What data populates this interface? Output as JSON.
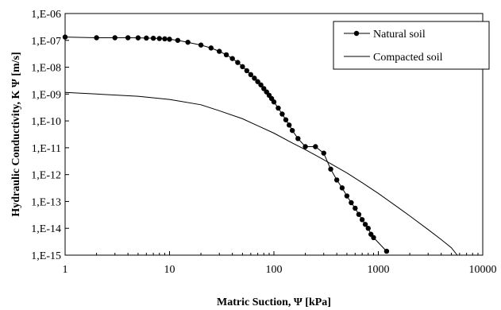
{
  "chart_data": {
    "type": "line",
    "xscale": "log",
    "yscale": "log",
    "xlim": [
      1,
      10000
    ],
    "ylim": [
      1e-15,
      1e-06
    ],
    "grid": false,
    "legend_position": "top-right",
    "xlabel": "Matric Suction, Ψ  [kPa]",
    "ylabel": "Hydraulic Conductivity, K Ψ [m/s]",
    "x_tick_labels": [
      "1",
      "10",
      "100",
      "1000",
      "10000"
    ],
    "x_tick_values": [
      1,
      10,
      100,
      1000,
      10000
    ],
    "y_tick_labels": [
      "1,E-15",
      "1,E-14",
      "1,E-13",
      "1,E-12",
      "1,E-11",
      "1,E-10",
      "1,E-09",
      "1,E-08",
      "1,E-07",
      "1,E-06"
    ],
    "y_tick_values": [
      1e-15,
      1e-14,
      1e-13,
      1e-12,
      1e-11,
      1e-10,
      1e-09,
      1e-08,
      1e-07,
      1e-06
    ],
    "series": [
      {
        "name": "Natural soil",
        "marker": "circle",
        "color": "#000000",
        "x": [
          1,
          2,
          3,
          4,
          5,
          6,
          7,
          8,
          9,
          10,
          12,
          15,
          20,
          25,
          30,
          35,
          40,
          45,
          50,
          55,
          60,
          65,
          70,
          75,
          80,
          85,
          90,
          95,
          100,
          110,
          120,
          130,
          140,
          150,
          170,
          200,
          250,
          300,
          350,
          400,
          450,
          500,
          550,
          600,
          650,
          700,
          750,
          800,
          850,
          900,
          1200
        ],
        "y": [
          1.33e-07,
          1.25e-07,
          1.25e-07,
          1.25e-07,
          1.24e-07,
          1.22e-07,
          1.2e-07,
          1.17e-07,
          1.14e-07,
          1.1e-07,
          1e-07,
          8.5e-08,
          6.7e-08,
          5.2e-08,
          3.9e-08,
          2.9e-08,
          2.1e-08,
          1.5e-08,
          1.05e-08,
          7.4e-09,
          5.3e-09,
          3.9e-09,
          2.9e-09,
          2.2e-09,
          1.6e-09,
          1.2e-09,
          9e-10,
          6.8e-10,
          5.1e-10,
          3e-10,
          1.8e-10,
          1.1e-10,
          7e-11,
          4.4e-11,
          2.2e-11,
          1.1e-11,
          1.1e-11,
          6.3e-12,
          1.6e-12,
          6.3e-13,
          3.2e-13,
          1.6e-13,
          9e-14,
          5.6e-14,
          3.3e-14,
          2.1e-14,
          1.4e-14,
          1e-14,
          6e-15,
          4.5e-15,
          1.4e-15
        ]
      },
      {
        "name": "Compacted soil",
        "marker": "none",
        "color": "#000000",
        "x": [
          1,
          2,
          5,
          10,
          20,
          30,
          50,
          70,
          100,
          150,
          200,
          250,
          300,
          400,
          500,
          700,
          1000,
          1500,
          2000,
          3000,
          4000,
          5000,
          5700
        ],
        "y": [
          1.15e-09,
          1e-09,
          8.3e-10,
          6.3e-10,
          4e-10,
          2.4e-10,
          1.2e-10,
          6.6e-11,
          3.5e-11,
          1.5e-11,
          8.5e-12,
          5.3e-12,
          3.6e-12,
          1.9e-12,
          1.15e-12,
          5e-13,
          2e-13,
          6.5e-14,
          2.9e-14,
          9e-15,
          3.8e-15,
          1.9e-15,
          1e-15
        ]
      }
    ]
  }
}
